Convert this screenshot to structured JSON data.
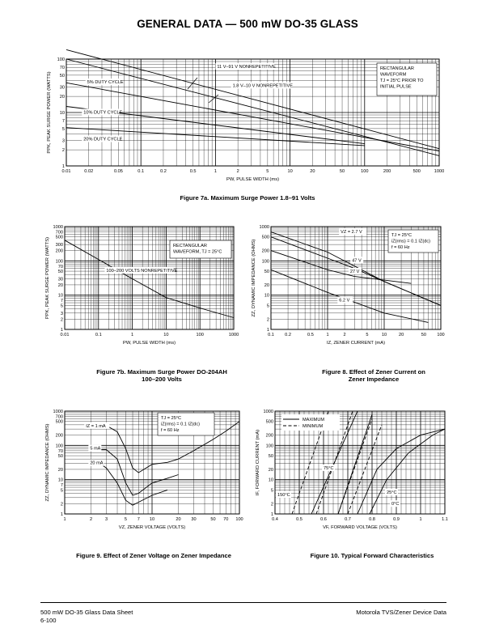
{
  "page_title": "GENERAL DATA — 500 mW DO-35 GLASS",
  "footer": {
    "left_line1": "500 mW DO-35 Glass Data Sheet",
    "left_line2": "6-100",
    "right": "Motorola TVS/Zener Device Data"
  },
  "chart_data": [
    {
      "id": "fig7a",
      "type": "line",
      "caption": "Figure 7a. Maximum Surge Power 1.8–91 Volts",
      "xlabel": "PW, PULSE WIDTH (ms)",
      "ylabel": "PPK, PEAK SURGE POWER (WATTS)",
      "xscale": "log",
      "yscale": "log",
      "xlim": [
        0.01,
        1000
      ],
      "ylim": [
        1,
        100
      ],
      "xticks": [
        0.01,
        0.02,
        0.05,
        0.1,
        0.2,
        0.5,
        1,
        2,
        5,
        10,
        20,
        50,
        100,
        200,
        500,
        1000
      ],
      "xtick_labels": [
        "0.01",
        "0.02",
        "0.05",
        "0.1",
        "0.2",
        "0.5",
        "1",
        "2",
        "5",
        "10",
        "20",
        "50",
        "100",
        "200",
        "500",
        "1000"
      ],
      "yticks": [
        1,
        2,
        3,
        5,
        7,
        10,
        20,
        30,
        50,
        70,
        100
      ],
      "ytick_labels": [
        "1",
        "2",
        "3",
        "5",
        "7",
        "10",
        "20",
        "30",
        "50",
        "70",
        "100"
      ],
      "grid": true,
      "legend_text": [
        "RECTANGULAR",
        "WAVEFORM",
        "TJ = 25°C PRIOR TO",
        "INITIAL PULSE"
      ],
      "series": [
        {
          "x": [
            0.01,
            1000
          ],
          "y": [
            150,
            2.1
          ]
        },
        {
          "x": [
            0.01,
            1000
          ],
          "y": [
            100,
            1.55
          ]
        },
        {
          "x": [
            0.01,
            1000
          ],
          "y": [
            36,
            1.9
          ]
        },
        {
          "x": [
            0.01,
            100
          ],
          "y": [
            13,
            2.6
          ]
        },
        {
          "x": [
            0.01,
            100
          ],
          "y": [
            5.2,
            2.4
          ]
        }
      ],
      "annotations": [
        {
          "text": "11 V–91 V NONREPETITIVE",
          "x": 1.05,
          "y": 68
        },
        {
          "text": "1.8 V–10 V NONREPETITIVE",
          "x": 1.7,
          "y": 30
        },
        {
          "text": "5% DUTY CYCLE",
          "x": 0.019,
          "y": 35
        },
        {
          "text": "10% DUTY CYCLE",
          "x": 0.017,
          "y": 9.5
        },
        {
          "text": "20% DUTY CYCLE",
          "x": 0.017,
          "y": 3.0
        }
      ]
    },
    {
      "id": "fig7b",
      "type": "line",
      "caption": "Figure 7b. Maximum Surge Power DO-204AH",
      "caption2": "100–200 Volts",
      "xlabel": "PW, PULSE WIDTH (ms)",
      "ylabel": "PPK, PEAK SURGE POWER (WATTS)",
      "xscale": "log",
      "yscale": "log",
      "xlim": [
        0.01,
        1000
      ],
      "ylim": [
        1,
        1000
      ],
      "xticks": [
        0.01,
        0.1,
        1,
        10,
        100,
        1000
      ],
      "xtick_labels": [
        "0.01",
        "0.1",
        "1",
        "10",
        "100",
        "1000"
      ],
      "yticks": [
        1,
        2,
        3,
        5,
        7,
        10,
        20,
        30,
        50,
        70,
        100,
        200,
        300,
        500,
        700,
        1000
      ],
      "ytick_labels": [
        "1",
        "2",
        "3",
        "5",
        "7",
        "10",
        "20",
        "30",
        "50",
        "70",
        "100",
        "200",
        "300",
        "500",
        "700",
        "1000"
      ],
      "grid": true,
      "legend_text": [
        "RECTANGULAR",
        "WAVEFORM, TJ = 25°C"
      ],
      "series": [
        {
          "x": [
            0.01,
            0.1,
            1,
            10,
            100,
            1000
          ],
          "y": [
            400,
            110,
            30,
            8.5,
            4.2,
            2.2
          ]
        }
      ],
      "annotations": [
        {
          "text": "100–200 VOLTS NONREPETITIVE",
          "x": 0.17,
          "y": 48
        }
      ]
    },
    {
      "id": "fig8",
      "type": "line",
      "caption": "Figure 8. Effect of Zener Current on",
      "caption2": "Zener Impedance",
      "xlabel": "IZ, ZENER CURRENT (mA)",
      "ylabel": "ZZ, DYNAMIC IMPEDANCE (OHMS)",
      "xscale": "log",
      "yscale": "log",
      "xlim": [
        0.1,
        100
      ],
      "ylim": [
        1,
        1000
      ],
      "xticks": [
        0.1,
        0.2,
        0.5,
        1,
        2,
        5,
        10,
        20,
        50,
        100
      ],
      "xtick_labels": [
        "0.1",
        "0.2",
        "0.5",
        "1",
        "2",
        "5",
        "10",
        "20",
        "50",
        "100"
      ],
      "yticks": [
        1,
        2,
        5,
        10,
        20,
        50,
        100,
        200,
        500,
        1000
      ],
      "ytick_labels": [
        "1",
        "2",
        "5",
        "10",
        "20",
        "50",
        "100",
        "200",
        "500",
        "1000"
      ],
      "grid": true,
      "legend_text": [
        "TJ = 25°C",
        "iZ(rms) = 0.1 IZ(dc)",
        "f = 60 Hz"
      ],
      "series": [
        {
          "name": "VZ = 2.7 V",
          "x": [
            0.1,
            1,
            10,
            100
          ],
          "y": [
            700,
            180,
            25,
            5
          ]
        },
        {
          "name": "47 V",
          "x": [
            0.1,
            1,
            3,
            10,
            100
          ],
          "y": [
            500,
            120,
            60,
            25,
            5
          ]
        },
        {
          "name": "27 V",
          "x": [
            0.1,
            1,
            3,
            30
          ],
          "y": [
            200,
            55,
            35,
            22
          ]
        },
        {
          "name": "6.2 V",
          "x": [
            0.1,
            1,
            10,
            60
          ],
          "y": [
            55,
            12,
            3,
            1.6
          ]
        }
      ],
      "annotations": [
        {
          "text": "VZ = 2.7 V",
          "x": 1.7,
          "y": 650
        },
        {
          "text": "47 V",
          "x": 2.7,
          "y": 95
        },
        {
          "text": "27 V",
          "x": 2.5,
          "y": 45
        },
        {
          "text": "6.2 V",
          "x": 1.6,
          "y": 6.5
        }
      ]
    },
    {
      "id": "fig9",
      "type": "line",
      "caption": "Figure 9. Effect of Zener Voltage on Zener Impedance",
      "xlabel": "VZ, ZENER VOLTAGE (VOLTS)",
      "ylabel": "ZZ, DYNAMIC IMPEDANCE (OHMS)",
      "xscale": "log",
      "yscale": "log",
      "xlim": [
        1,
        100
      ],
      "ylim": [
        1,
        1000
      ],
      "xticks": [
        1,
        2,
        3,
        5,
        7,
        10,
        20,
        30,
        50,
        70,
        100
      ],
      "xtick_labels": [
        "1",
        "2",
        "3",
        "5",
        "7",
        "10",
        "20",
        "30",
        "50",
        "70",
        "100"
      ],
      "yticks": [
        1,
        2,
        5,
        7,
        10,
        20,
        50,
        70,
        100,
        200,
        500,
        700,
        1000
      ],
      "ytick_labels": [
        "1",
        "2",
        "5",
        "7",
        "10",
        "20",
        "50",
        "70",
        "100",
        "200",
        "500",
        "700",
        "1000"
      ],
      "grid": true,
      "legend_text": [
        "TJ = 25°C",
        "iZ(rms) = 0.1 IZ(dc)",
        "f = 60 Hz"
      ],
      "series": [
        {
          "name": "IZ = 1 mA",
          "x": [
            2.5,
            3,
            4,
            5,
            6,
            7,
            10,
            15,
            20,
            30,
            50,
            70,
            100
          ],
          "y": [
            380,
            380,
            250,
            80,
            22,
            16,
            28,
            32,
            40,
            70,
            150,
            260,
            500
          ]
        },
        {
          "name": "5 mA",
          "x": [
            2.5,
            3,
            4,
            5,
            6,
            7,
            10,
            15,
            20
          ],
          "y": [
            75,
            75,
            40,
            8,
            3.5,
            4,
            8,
            11,
            14
          ]
        },
        {
          "name": "20 mA",
          "x": [
            2.5,
            3,
            4,
            5,
            6,
            7,
            10,
            15
          ],
          "y": [
            30,
            22,
            8,
            2.5,
            1.8,
            2.2,
            3.5,
            5
          ]
        }
      ],
      "annotations": [
        {
          "text": "IZ = 1 mA",
          "x": 1.75,
          "y": 340
        },
        {
          "text": "5 mA",
          "x": 1.95,
          "y": 75
        },
        {
          "text": "20 mA",
          "x": 1.95,
          "y": 28
        }
      ]
    },
    {
      "id": "fig10",
      "type": "line",
      "caption": "Figure 10. Typical Forward Characteristics",
      "xlabel": "VF, FORWARD VOLTAGE (VOLTS)",
      "ylabel": "IF, FORWARD CURRENT (mA)",
      "xscale": "linear",
      "yscale": "log",
      "xlim": [
        0.4,
        1.1
      ],
      "ylim": [
        1,
        1000
      ],
      "xticks": [
        0.4,
        0.5,
        0.6,
        0.7,
        0.8,
        0.9,
        1,
        1.1
      ],
      "xtick_labels": [
        "0.4",
        "0.5",
        "0.6",
        "0.7",
        "0.8",
        "0.9",
        "1",
        "1.1"
      ],
      "yticks": [
        1,
        2,
        5,
        10,
        20,
        50,
        100,
        200,
        500,
        1000
      ],
      "ytick_labels": [
        "1",
        "2",
        "5",
        "10",
        "20",
        "50",
        "100",
        "200",
        "500",
        "1000"
      ],
      "grid": true,
      "legend": [
        {
          "label": "MAXIMUM",
          "style": "solid"
        },
        {
          "label": "MINIMUM",
          "style": "dashed"
        }
      ],
      "series": [
        {
          "name": "150°C",
          "style": "dashed",
          "x": [
            0.47,
            0.62
          ],
          "y": [
            1,
            1000
          ]
        },
        {
          "name": "150°C",
          "style": "solid",
          "x": [
            0.55,
            0.74
          ],
          "y": [
            1,
            1000
          ]
        },
        {
          "name": "75°C",
          "style": "dashed",
          "x": [
            0.57,
            0.72
          ],
          "y": [
            1,
            1000
          ]
        },
        {
          "name": "75°C",
          "style": "solid",
          "x": [
            0.66,
            0.8
          ],
          "y": [
            1,
            800
          ]
        },
        {
          "name": "25°C",
          "style": "dashed",
          "x": [
            0.66,
            0.8
          ],
          "y": [
            1,
            600
          ]
        },
        {
          "name": "25°C",
          "style": "solid",
          "x": [
            0.74,
            0.82,
            0.9,
            1.0,
            1.1
          ],
          "y": [
            1,
            20,
            80,
            200,
            300
          ]
        },
        {
          "name": "0°C",
          "style": "dashed",
          "x": [
            0.7,
            0.84
          ],
          "y": [
            1,
            400
          ]
        },
        {
          "name": "0°C",
          "style": "solid",
          "x": [
            0.79,
            0.86,
            0.95,
            1.05,
            1.1
          ],
          "y": [
            1,
            10,
            60,
            200,
            300
          ]
        }
      ],
      "annotations": [
        {
          "text": "150°C",
          "x": 0.41,
          "y": 3.3
        },
        {
          "text": "75°C",
          "x": 0.6,
          "y": 20
        },
        {
          "text": "25°C",
          "x": 0.86,
          "y": 3.9
        },
        {
          "text": "0°C",
          "x": 0.88,
          "y": 1.8
        }
      ]
    }
  ]
}
